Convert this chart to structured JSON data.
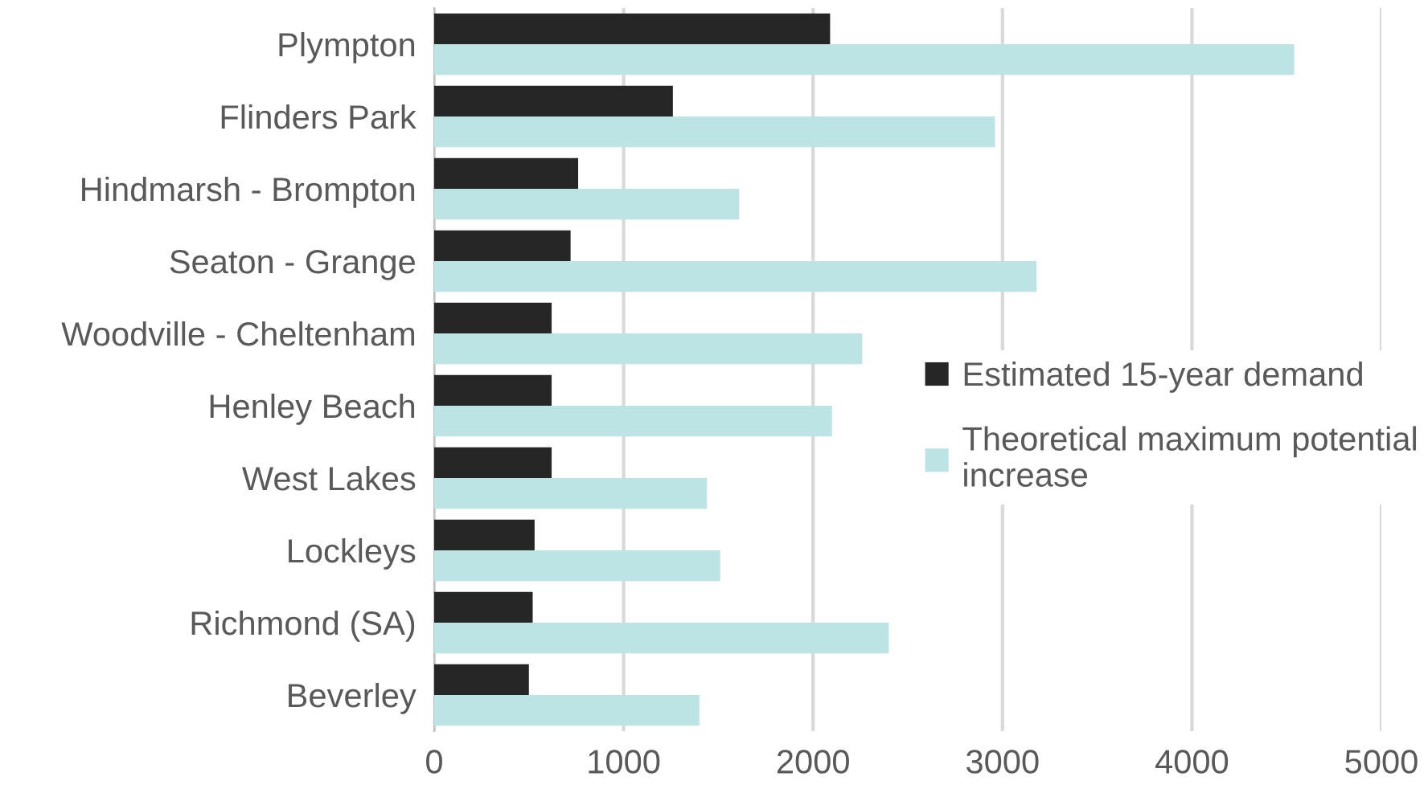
{
  "chart_data": {
    "type": "bar",
    "orientation": "horizontal",
    "categories": [
      "Plympton",
      "Flinders Park",
      "Hindmarsh - Brompton",
      "Seaton - Grange",
      "Woodville - Cheltenham",
      "Henley Beach",
      "West Lakes",
      "Lockleys",
      "Richmond (SA)",
      "Beverley"
    ],
    "series": [
      {
        "name": "Estimated 15-year demand",
        "color": "#262626",
        "values": [
          2090,
          1260,
          760,
          720,
          620,
          620,
          620,
          530,
          520,
          500
        ]
      },
      {
        "name": "Theoretical maximum potential increase",
        "color": "#bde4e4",
        "values": [
          4540,
          2960,
          1610,
          3180,
          2260,
          2100,
          1440,
          1510,
          2400,
          1400
        ]
      }
    ],
    "xlim": [
      0,
      5000
    ],
    "xticks": [
      0,
      1000,
      2000,
      3000,
      4000,
      5000
    ],
    "grid": "x",
    "legend": "right"
  }
}
